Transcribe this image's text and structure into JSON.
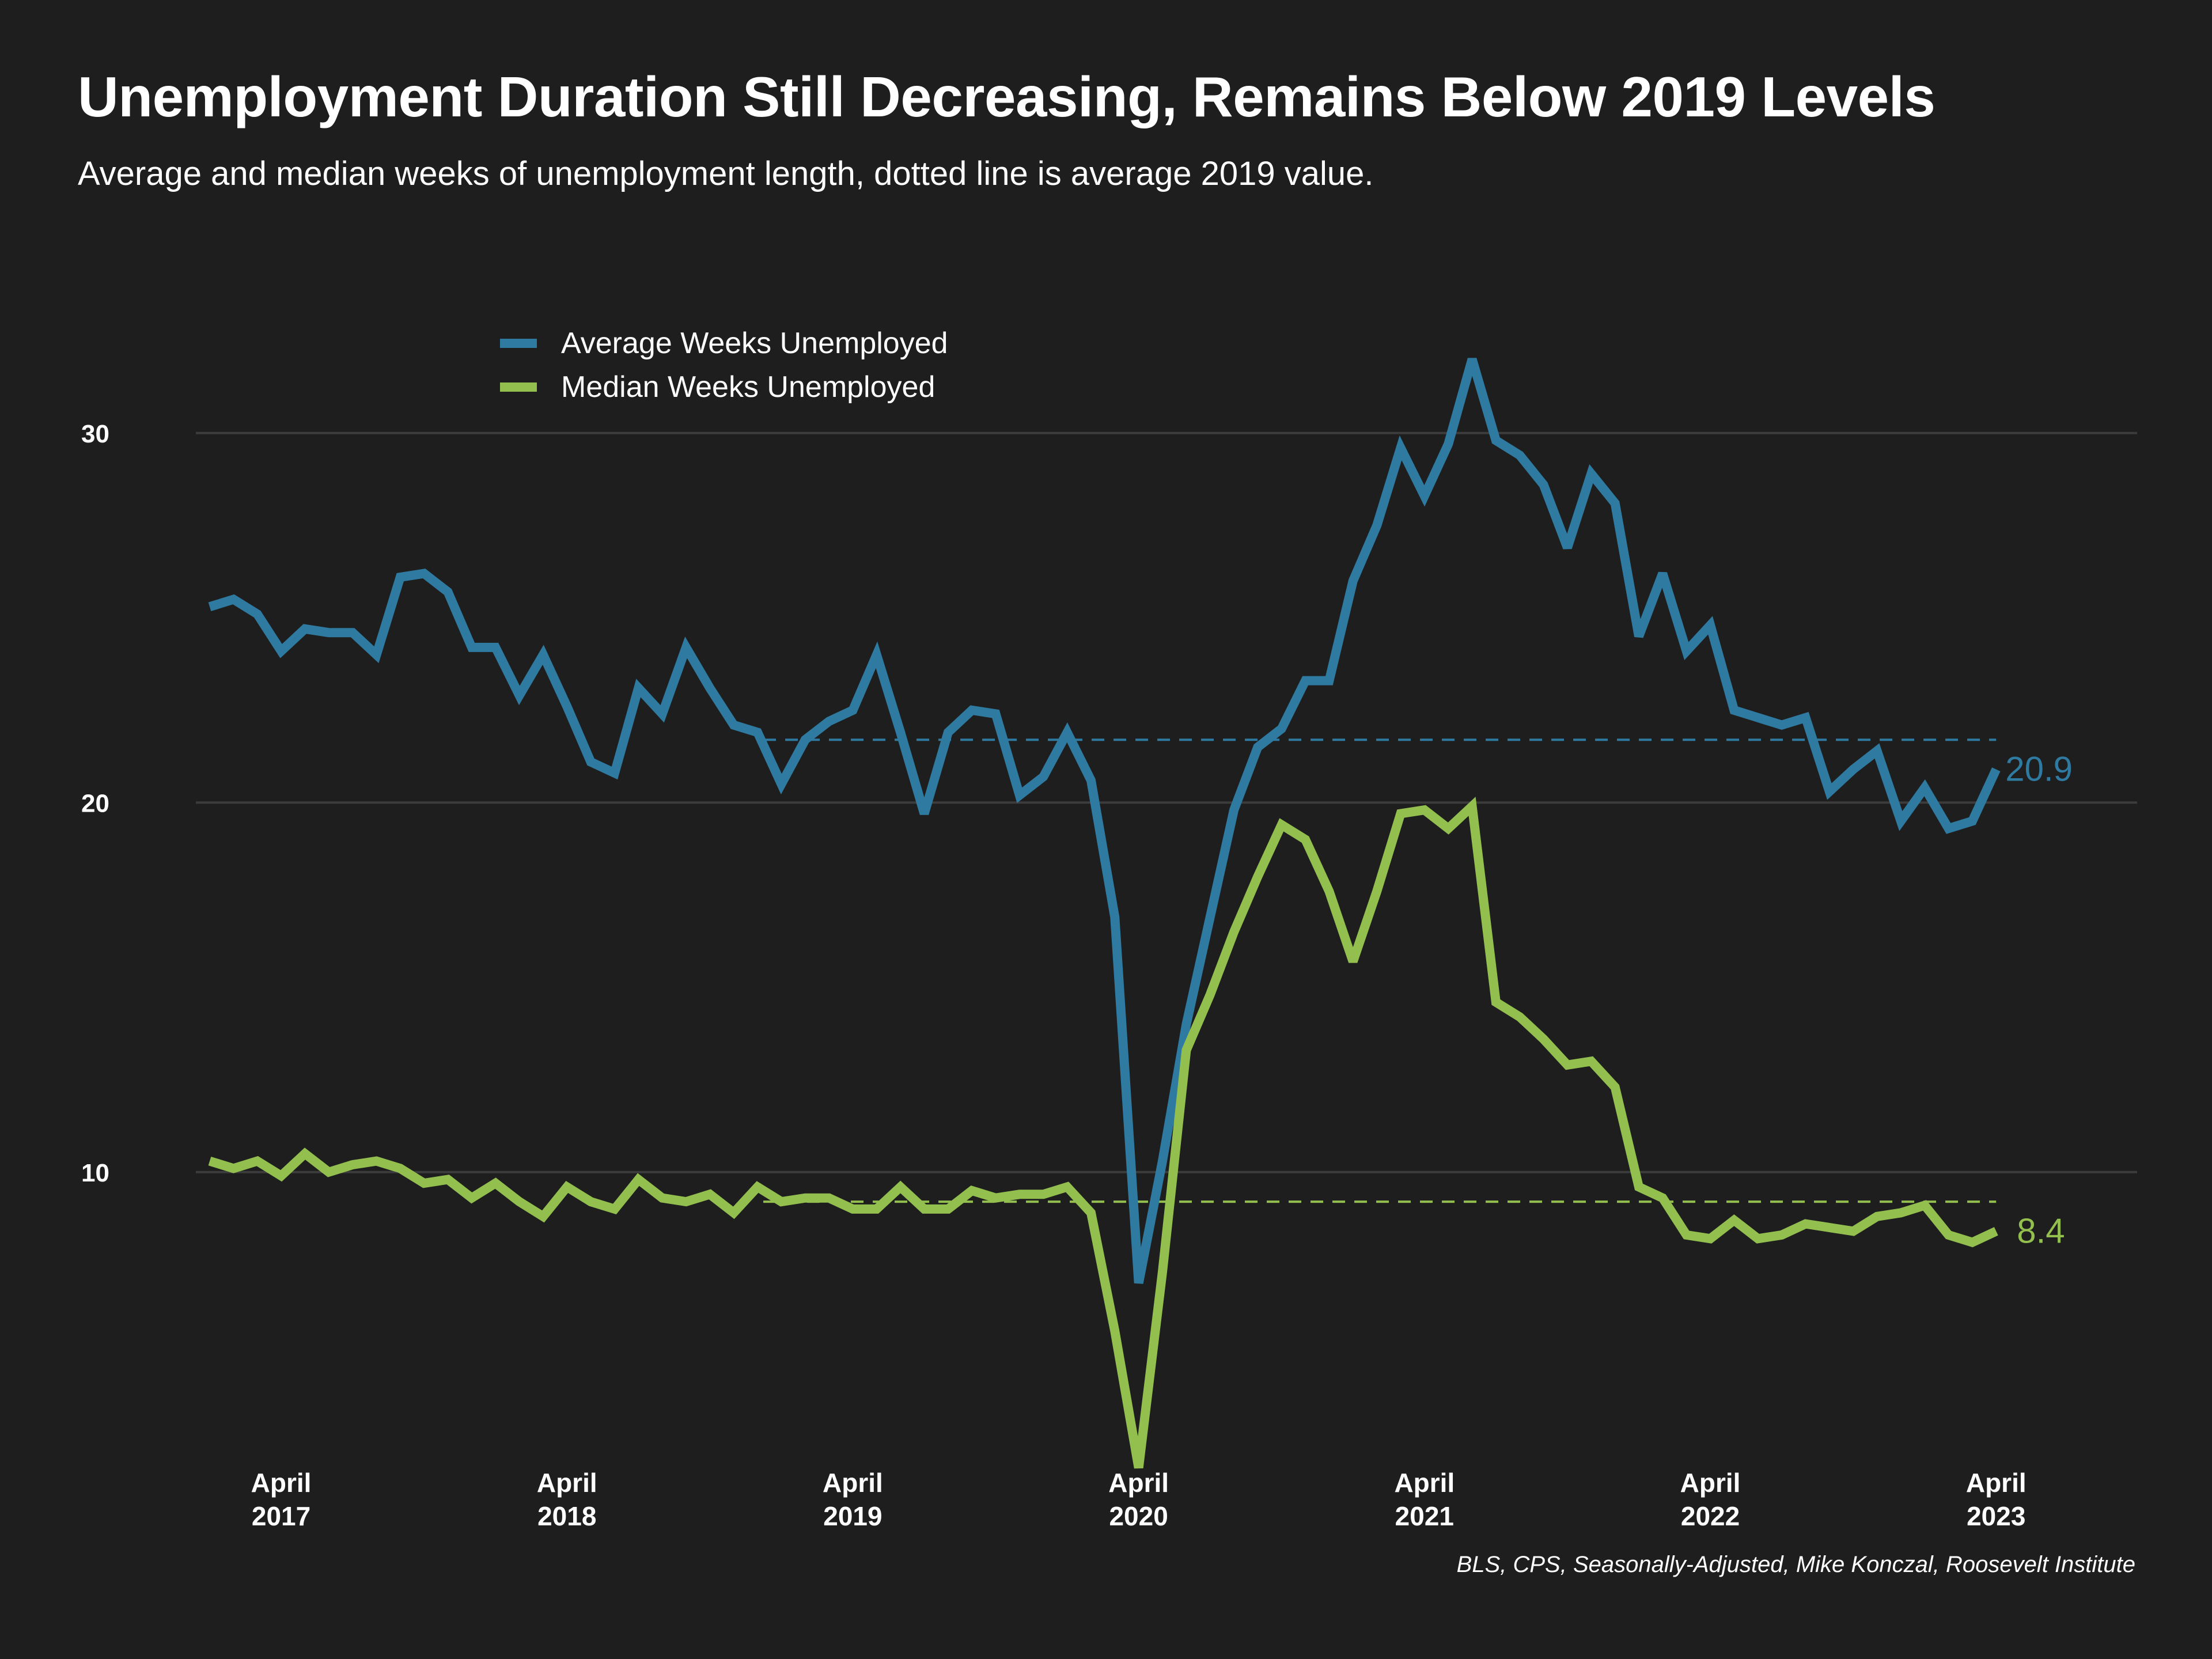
{
  "chart_data": {
    "type": "line",
    "title": "Unemployment Duration Still Decreasing, Remains Below 2019 Levels",
    "subtitle": "Average and median weeks of unemployment length, dotted line is average 2019 value.",
    "source": "BLS, CPS, Seasonally-Adjusted, Mike Konczal, Roosevelt Institute",
    "xlabel": "",
    "ylabel": "",
    "x_start": "2017-01",
    "x_end": "2023-05",
    "x_ticks": [
      {
        "date": "2017-04",
        "label": [
          "April",
          "2017"
        ]
      },
      {
        "date": "2018-04",
        "label": [
          "April",
          "2018"
        ]
      },
      {
        "date": "2019-04",
        "label": [
          "April",
          "2019"
        ]
      },
      {
        "date": "2020-04",
        "label": [
          "April",
          "2020"
        ]
      },
      {
        "date": "2021-04",
        "label": [
          "April",
          "2021"
        ]
      },
      {
        "date": "2022-04",
        "label": [
          "April",
          "2022"
        ]
      },
      {
        "date": "2023-04",
        "label": [
          "April",
          "2023"
        ]
      }
    ],
    "y_ticks": [
      10,
      20,
      30
    ],
    "ylim": [
      2,
      32
    ],
    "grid": "horizontal",
    "legend_position": "top-left",
    "series": [
      {
        "name": "Average Weeks Unemployed",
        "color": "#2f7aa0",
        "end_label": "20.9",
        "reference_2019": 21.7,
        "values": [
          25.3,
          25.5,
          25.1,
          24.1,
          24.7,
          24.6,
          24.6,
          24.0,
          26.1,
          26.2,
          25.7,
          24.2,
          24.2,
          22.9,
          24.0,
          22.6,
          21.1,
          20.8,
          23.1,
          22.4,
          24.2,
          23.1,
          22.1,
          21.9,
          20.5,
          21.7,
          22.2,
          22.5,
          24.0,
          21.9,
          19.7,
          21.9,
          22.5,
          22.4,
          20.2,
          20.7,
          21.9,
          20.6,
          16.9,
          7.0,
          10.3,
          14.0,
          16.9,
          19.8,
          21.5,
          22.0,
          23.3,
          23.3,
          26.0,
          27.5,
          29.6,
          28.3,
          29.7,
          32.0,
          29.8,
          29.4,
          28.6,
          26.9,
          28.9,
          28.1,
          24.5,
          26.2,
          24.1,
          24.8,
          22.5,
          22.3,
          22.1,
          22.3,
          20.3,
          20.9,
          21.4,
          19.5,
          20.4,
          19.3,
          19.5,
          20.9
        ]
      },
      {
        "name": "Median Weeks Unemployed",
        "color": "#93bf4f",
        "end_label": "8.4",
        "reference_2019": 9.2,
        "values": [
          10.3,
          10.1,
          10.3,
          9.9,
          10.5,
          10.0,
          10.2,
          10.3,
          10.1,
          9.7,
          9.8,
          9.3,
          9.7,
          9.2,
          8.8,
          9.6,
          9.2,
          9.0,
          9.8,
          9.3,
          9.2,
          9.4,
          8.9,
          9.6,
          9.2,
          9.3,
          9.3,
          9.0,
          9.0,
          9.6,
          9.0,
          9.0,
          9.5,
          9.3,
          9.4,
          9.4,
          9.6,
          8.9,
          5.7,
          2.0,
          7.3,
          13.3,
          14.8,
          16.5,
          18.0,
          19.4,
          19.0,
          17.6,
          15.7,
          17.6,
          19.7,
          19.8,
          19.3,
          19.9,
          14.6,
          14.2,
          13.6,
          12.9,
          13.0,
          12.3,
          9.6,
          9.3,
          8.3,
          8.2,
          8.7,
          8.2,
          8.3,
          8.6,
          8.5,
          8.4,
          8.8,
          8.9,
          9.1,
          8.3,
          8.1,
          8.4
        ]
      }
    ]
  }
}
